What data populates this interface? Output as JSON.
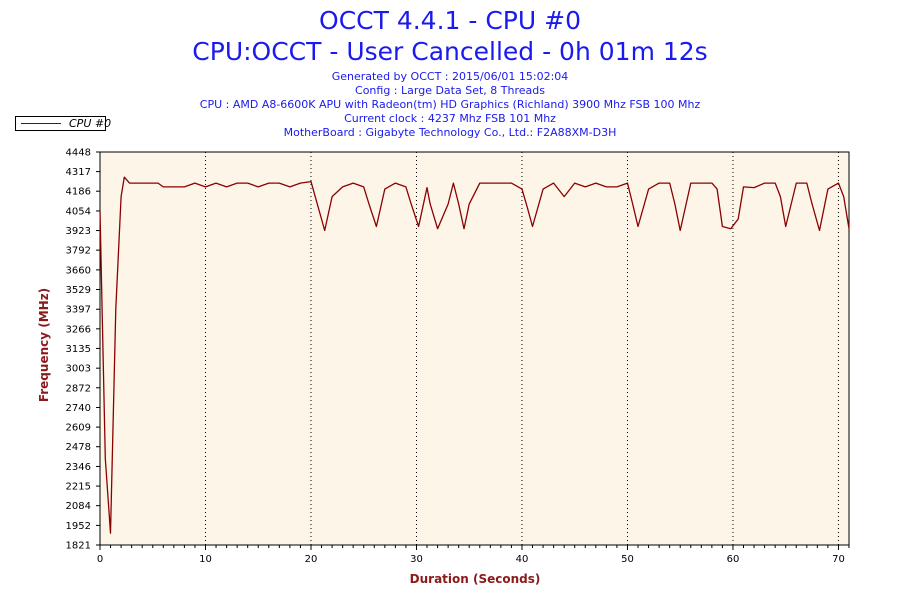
{
  "header": {
    "title_line1": "OCCT 4.4.1 - CPU #0",
    "title_line2": "CPU:OCCT - User Cancelled - 0h 01m 12s",
    "info": [
      "Generated by OCCT : 2015/06/01 15:02:04",
      "Config : Large Data Set, 8 Threads",
      "CPU : AMD A8-6600K APU with Radeon(tm) HD Graphics (Richland) 3900 Mhz FSB 100 Mhz",
      "Current clock : 4237 Mhz FSB 101 Mhz",
      "MotherBoard : Gigabyte Technology Co., Ltd.: F2A88XM-D3H"
    ]
  },
  "colors": {
    "title": "#1a1aee",
    "axis_label": "#8b1a1a",
    "series_line": "#8b0000",
    "plot_background": "#fdf6e8"
  },
  "chart_data": {
    "type": "line",
    "xlabel": "Duration (Seconds)",
    "ylabel": "Frequency (MHz)",
    "xlim": [
      0,
      71
    ],
    "ylim": [
      1821,
      4448
    ],
    "x_ticks": [
      0,
      10,
      20,
      30,
      40,
      50,
      60,
      70
    ],
    "y_ticks": [
      1821,
      1952,
      2084,
      2215,
      2346,
      2478,
      2609,
      2740,
      2872,
      3003,
      3135,
      3266,
      3397,
      3529,
      3660,
      3792,
      3923,
      4054,
      4186,
      4317,
      4448
    ],
    "grid": "vertical dotted at major x ticks",
    "legend_position": "top-left",
    "series": [
      {
        "name": "CPU #0",
        "points": [
          [
            0,
            4054
          ],
          [
            0.5,
            2400
          ],
          [
            1.0,
            1900
          ],
          [
            1.5,
            3400
          ],
          [
            2.0,
            4150
          ],
          [
            2.3,
            4280
          ],
          [
            2.8,
            4240
          ],
          [
            4,
            4240
          ],
          [
            5.5,
            4240
          ],
          [
            6,
            4215
          ],
          [
            7,
            4215
          ],
          [
            8,
            4215
          ],
          [
            9,
            4240
          ],
          [
            10,
            4215
          ],
          [
            11,
            4240
          ],
          [
            12,
            4215
          ],
          [
            13,
            4240
          ],
          [
            14,
            4240
          ],
          [
            15,
            4215
          ],
          [
            16,
            4240
          ],
          [
            17,
            4240
          ],
          [
            18,
            4215
          ],
          [
            19,
            4240
          ],
          [
            20,
            4250
          ],
          [
            21,
            4000
          ],
          [
            21.3,
            3923
          ],
          [
            22,
            4150
          ],
          [
            23,
            4215
          ],
          [
            24,
            4240
          ],
          [
            25,
            4215
          ],
          [
            25.5,
            4100
          ],
          [
            26.2,
            3950
          ],
          [
            27,
            4200
          ],
          [
            28,
            4240
          ],
          [
            29,
            4215
          ],
          [
            29.5,
            4100
          ],
          [
            30.2,
            3950
          ],
          [
            31,
            4210
          ],
          [
            31.3,
            4100
          ],
          [
            32,
            3935
          ],
          [
            33,
            4100
          ],
          [
            33.5,
            4240
          ],
          [
            34,
            4100
          ],
          [
            34.5,
            3935
          ],
          [
            35,
            4100
          ],
          [
            36,
            4240
          ],
          [
            37,
            4240
          ],
          [
            38,
            4240
          ],
          [
            39,
            4240
          ],
          [
            40,
            4200
          ],
          [
            40.5,
            4080
          ],
          [
            41,
            3950
          ],
          [
            42,
            4200
          ],
          [
            43,
            4240
          ],
          [
            44,
            4150
          ],
          [
            45,
            4240
          ],
          [
            46,
            4215
          ],
          [
            47,
            4240
          ],
          [
            48,
            4215
          ],
          [
            49,
            4215
          ],
          [
            50,
            4240
          ],
          [
            50.5,
            4100
          ],
          [
            51,
            3950
          ],
          [
            52,
            4200
          ],
          [
            53,
            4240
          ],
          [
            54,
            4240
          ],
          [
            54.5,
            4100
          ],
          [
            55,
            3923
          ],
          [
            56,
            4240
          ],
          [
            57,
            4240
          ],
          [
            58,
            4240
          ],
          [
            58.5,
            4200
          ],
          [
            59,
            3950
          ],
          [
            59.8,
            3935
          ],
          [
            60.5,
            4000
          ],
          [
            61,
            4215
          ],
          [
            62,
            4210
          ],
          [
            63,
            4240
          ],
          [
            64,
            4240
          ],
          [
            64.5,
            4150
          ],
          [
            65,
            3950
          ],
          [
            66,
            4240
          ],
          [
            67,
            4240
          ],
          [
            67.5,
            4100
          ],
          [
            68.2,
            3923
          ],
          [
            69,
            4200
          ],
          [
            70,
            4240
          ],
          [
            70.5,
            4150
          ],
          [
            71,
            3935
          ]
        ]
      }
    ]
  }
}
